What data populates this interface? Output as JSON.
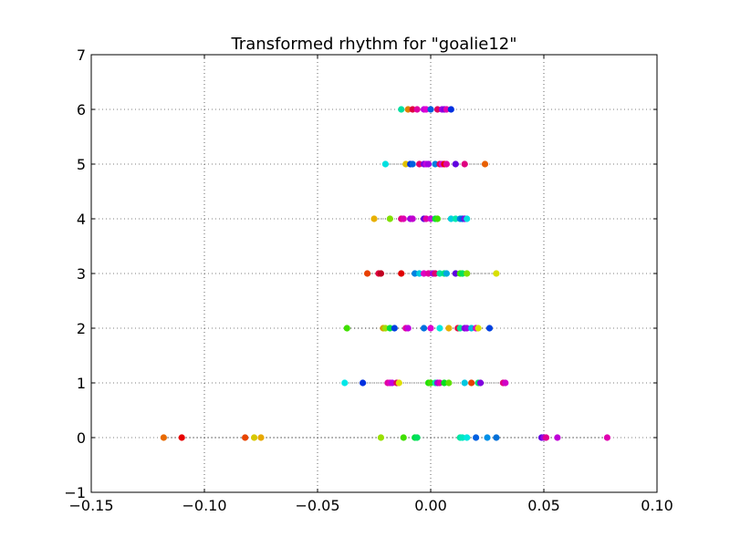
{
  "chart_data": {
    "type": "scatter",
    "title": "Transformed rhythm for \"goalie12\"",
    "xlabel": "",
    "ylabel": "",
    "xlim": [
      -0.15,
      0.1
    ],
    "ylim": [
      -1,
      7
    ],
    "x_ticks": [
      -0.15,
      -0.1,
      -0.05,
      0.0,
      0.05,
      0.1
    ],
    "x_tick_labels": [
      "−0.15",
      "−0.10",
      "−0.05",
      "0.00",
      "0.05",
      "0.10"
    ],
    "y_ticks": [
      -1,
      0,
      1,
      2,
      3,
      4,
      5,
      6,
      7
    ],
    "y_tick_labels": [
      "−1",
      "0",
      "1",
      "2",
      "3",
      "4",
      "5",
      "6",
      "7"
    ],
    "grid": true,
    "grid_style": "dotted",
    "line_style": "dotted",
    "rows": [
      {
        "y": 0,
        "points": [
          {
            "x": -0.118,
            "color": "#e86a00"
          },
          {
            "x": -0.11,
            "color": "#e80000"
          },
          {
            "x": -0.082,
            "color": "#e84400"
          },
          {
            "x": -0.078,
            "color": "#d8c800"
          },
          {
            "x": -0.075,
            "color": "#e8a800"
          },
          {
            "x": -0.022,
            "color": "#98e000"
          },
          {
            "x": -0.012,
            "color": "#40e000"
          },
          {
            "x": -0.007,
            "color": "#00e040"
          },
          {
            "x": -0.006,
            "color": "#00e060"
          },
          {
            "x": 0.013,
            "color": "#00e8a0"
          },
          {
            "x": 0.014,
            "color": "#00e8c0"
          },
          {
            "x": 0.016,
            "color": "#00e8e0"
          },
          {
            "x": 0.02,
            "color": "#0060e0"
          },
          {
            "x": 0.025,
            "color": "#0090e8"
          },
          {
            "x": 0.029,
            "color": "#0070d8"
          },
          {
            "x": 0.049,
            "color": "#6000e0"
          },
          {
            "x": 0.05,
            "color": "#a000e0"
          },
          {
            "x": 0.051,
            "color": "#e00090"
          },
          {
            "x": 0.056,
            "color": "#c000d8"
          },
          {
            "x": 0.078,
            "color": "#e000b0"
          }
        ]
      },
      {
        "y": 1,
        "points": [
          {
            "x": -0.038,
            "color": "#00e8e8"
          },
          {
            "x": -0.03,
            "color": "#0030e0"
          },
          {
            "x": -0.019,
            "color": "#e000a0"
          },
          {
            "x": -0.018,
            "color": "#e000c0"
          },
          {
            "x": -0.017,
            "color": "#c000e0"
          },
          {
            "x": -0.015,
            "color": "#e00060"
          },
          {
            "x": -0.014,
            "color": "#e0e000"
          },
          {
            "x": -0.001,
            "color": "#20e000"
          },
          {
            "x": 0.0,
            "color": "#40e000"
          },
          {
            "x": 0.002,
            "color": "#00e8a0"
          },
          {
            "x": 0.003,
            "color": "#a000e0"
          },
          {
            "x": 0.004,
            "color": "#e000b0"
          },
          {
            "x": 0.006,
            "color": "#00e020"
          },
          {
            "x": 0.008,
            "color": "#60e000"
          },
          {
            "x": 0.015,
            "color": "#00c8e0"
          },
          {
            "x": 0.018,
            "color": "#e84000"
          },
          {
            "x": 0.021,
            "color": "#00e070"
          },
          {
            "x": 0.022,
            "color": "#8000e0"
          },
          {
            "x": 0.032,
            "color": "#e00080"
          },
          {
            "x": 0.033,
            "color": "#d000c8"
          }
        ]
      },
      {
        "y": 2,
        "points": [
          {
            "x": -0.037,
            "color": "#40e000"
          },
          {
            "x": -0.021,
            "color": "#d8a000"
          },
          {
            "x": -0.02,
            "color": "#a0e000"
          },
          {
            "x": -0.018,
            "color": "#00e040"
          },
          {
            "x": -0.016,
            "color": "#0040e0"
          },
          {
            "x": -0.011,
            "color": "#e000a0"
          },
          {
            "x": -0.01,
            "color": "#c000e0"
          },
          {
            "x": -0.003,
            "color": "#0070e0"
          },
          {
            "x": 0.0,
            "color": "#e000d0"
          },
          {
            "x": 0.004,
            "color": "#00e8e0"
          },
          {
            "x": 0.008,
            "color": "#e8b000"
          },
          {
            "x": 0.012,
            "color": "#e80040"
          },
          {
            "x": 0.013,
            "color": "#00e090"
          },
          {
            "x": 0.015,
            "color": "#8000e0"
          },
          {
            "x": 0.016,
            "color": "#a000e8"
          },
          {
            "x": 0.018,
            "color": "#00b8e0"
          },
          {
            "x": 0.02,
            "color": "#e000c0"
          },
          {
            "x": 0.021,
            "color": "#d8e000"
          },
          {
            "x": 0.026,
            "color": "#0040e0"
          }
        ]
      },
      {
        "y": 3,
        "points": [
          {
            "x": -0.028,
            "color": "#e84000"
          },
          {
            "x": -0.023,
            "color": "#e00040"
          },
          {
            "x": -0.022,
            "color": "#c00020"
          },
          {
            "x": -0.013,
            "color": "#e00000"
          },
          {
            "x": -0.007,
            "color": "#0080e0"
          },
          {
            "x": -0.005,
            "color": "#00c8e0"
          },
          {
            "x": -0.003,
            "color": "#e000c0"
          },
          {
            "x": -0.001,
            "color": "#e000a0"
          },
          {
            "x": 0.001,
            "color": "#a000e0"
          },
          {
            "x": 0.002,
            "color": "#e00070"
          },
          {
            "x": 0.004,
            "color": "#00e0a0"
          },
          {
            "x": 0.006,
            "color": "#00e080"
          },
          {
            "x": 0.007,
            "color": "#00a8e0"
          },
          {
            "x": 0.011,
            "color": "#6000e0"
          },
          {
            "x": 0.013,
            "color": "#40e000"
          },
          {
            "x": 0.014,
            "color": "#00e060"
          },
          {
            "x": 0.016,
            "color": "#80e000"
          },
          {
            "x": 0.029,
            "color": "#d8e000"
          }
        ]
      },
      {
        "y": 4,
        "points": [
          {
            "x": -0.025,
            "color": "#e8b000"
          },
          {
            "x": -0.018,
            "color": "#80e000"
          },
          {
            "x": -0.013,
            "color": "#e00080"
          },
          {
            "x": -0.012,
            "color": "#e000b0"
          },
          {
            "x": -0.009,
            "color": "#a000e0"
          },
          {
            "x": -0.008,
            "color": "#c000d0"
          },
          {
            "x": -0.003,
            "color": "#6000e0"
          },
          {
            "x": -0.002,
            "color": "#e000a0"
          },
          {
            "x": 0.0,
            "color": "#d000e0"
          },
          {
            "x": 0.002,
            "color": "#00e040"
          },
          {
            "x": 0.003,
            "color": "#40e000"
          },
          {
            "x": 0.009,
            "color": "#00d0e0"
          },
          {
            "x": 0.011,
            "color": "#00e8b0"
          },
          {
            "x": 0.013,
            "color": "#0080e0"
          },
          {
            "x": 0.014,
            "color": "#0060e8"
          },
          {
            "x": 0.015,
            "color": "#8000e0"
          },
          {
            "x": 0.016,
            "color": "#00e0e0"
          }
        ]
      },
      {
        "y": 5,
        "points": [
          {
            "x": -0.02,
            "color": "#00e0e0"
          },
          {
            "x": -0.011,
            "color": "#e0c000"
          },
          {
            "x": -0.009,
            "color": "#0030e0"
          },
          {
            "x": -0.008,
            "color": "#0060e0"
          },
          {
            "x": -0.005,
            "color": "#e00070"
          },
          {
            "x": -0.003,
            "color": "#8000e0"
          },
          {
            "x": -0.002,
            "color": "#c000e0"
          },
          {
            "x": -0.001,
            "color": "#a000e0"
          },
          {
            "x": 0.002,
            "color": "#0080e0"
          },
          {
            "x": 0.004,
            "color": "#e00060"
          },
          {
            "x": 0.005,
            "color": "#d000e0"
          },
          {
            "x": 0.006,
            "color": "#e80000"
          },
          {
            "x": 0.007,
            "color": "#e000a0"
          },
          {
            "x": 0.011,
            "color": "#6000e0"
          },
          {
            "x": 0.015,
            "color": "#e00080"
          },
          {
            "x": 0.024,
            "color": "#e86000"
          }
        ]
      },
      {
        "y": 6,
        "points": [
          {
            "x": -0.013,
            "color": "#00e0a0"
          },
          {
            "x": -0.01,
            "color": "#e08000"
          },
          {
            "x": -0.008,
            "color": "#e00040"
          },
          {
            "x": -0.006,
            "color": "#e000a0"
          },
          {
            "x": -0.003,
            "color": "#c000e0"
          },
          {
            "x": -0.002,
            "color": "#e000d0"
          },
          {
            "x": 0.0,
            "color": "#0060e0"
          },
          {
            "x": 0.003,
            "color": "#e00060"
          },
          {
            "x": 0.005,
            "color": "#a000e0"
          },
          {
            "x": 0.006,
            "color": "#8000e0"
          },
          {
            "x": 0.007,
            "color": "#e000b0"
          },
          {
            "x": 0.009,
            "color": "#0030e0"
          }
        ]
      }
    ]
  }
}
